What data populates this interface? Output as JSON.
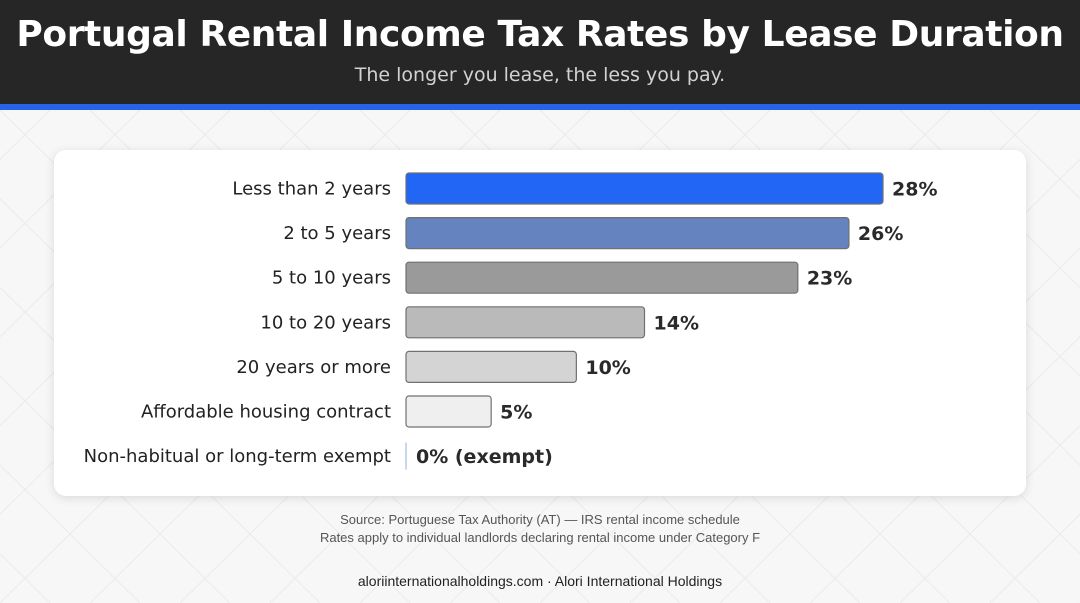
{
  "header": {
    "title": "Portugal Rental Income Tax Rates by Lease Duration",
    "subtitle": "The longer you lease, the less you pay."
  },
  "colors": {
    "header_bg": "#262626",
    "accent": "#2563eb",
    "exempt_text": "#3b78d8"
  },
  "chart_data": {
    "type": "bar",
    "orientation": "horizontal",
    "title": "Portugal Rental Income Tax Rates by Lease Duration",
    "subtitle": "The longer you lease, the less you pay.",
    "xlabel": "",
    "ylabel": "",
    "xlim": [
      0,
      28
    ],
    "grid": false,
    "legend": "none",
    "categories": [
      "Less than 2 years",
      "2 to 5 years",
      "5 to 10 years",
      "10 to 20 years",
      "20 years or more",
      "Affordable housing contract",
      "Non-habitual or long-term exempt"
    ],
    "values": [
      28,
      26,
      23,
      14,
      10,
      5,
      0
    ],
    "value_labels": [
      "28%",
      "26%",
      "23%",
      "14%",
      "10%",
      "5%",
      "0% (exempt)"
    ],
    "bar_colors": [
      "#2266f5",
      "#6483bf",
      "#9a9a9a",
      "#bababa",
      "#d4d4d4",
      "#efefef",
      "#c9d7ee"
    ]
  },
  "source": {
    "line1": "Source: Portuguese Tax Authority (AT) — IRS rental income schedule",
    "line2": "Rates apply to individual landlords declaring rental income under Category F"
  },
  "footer": {
    "text": "aloriinternationalholdings.com · Alori International Holdings"
  }
}
